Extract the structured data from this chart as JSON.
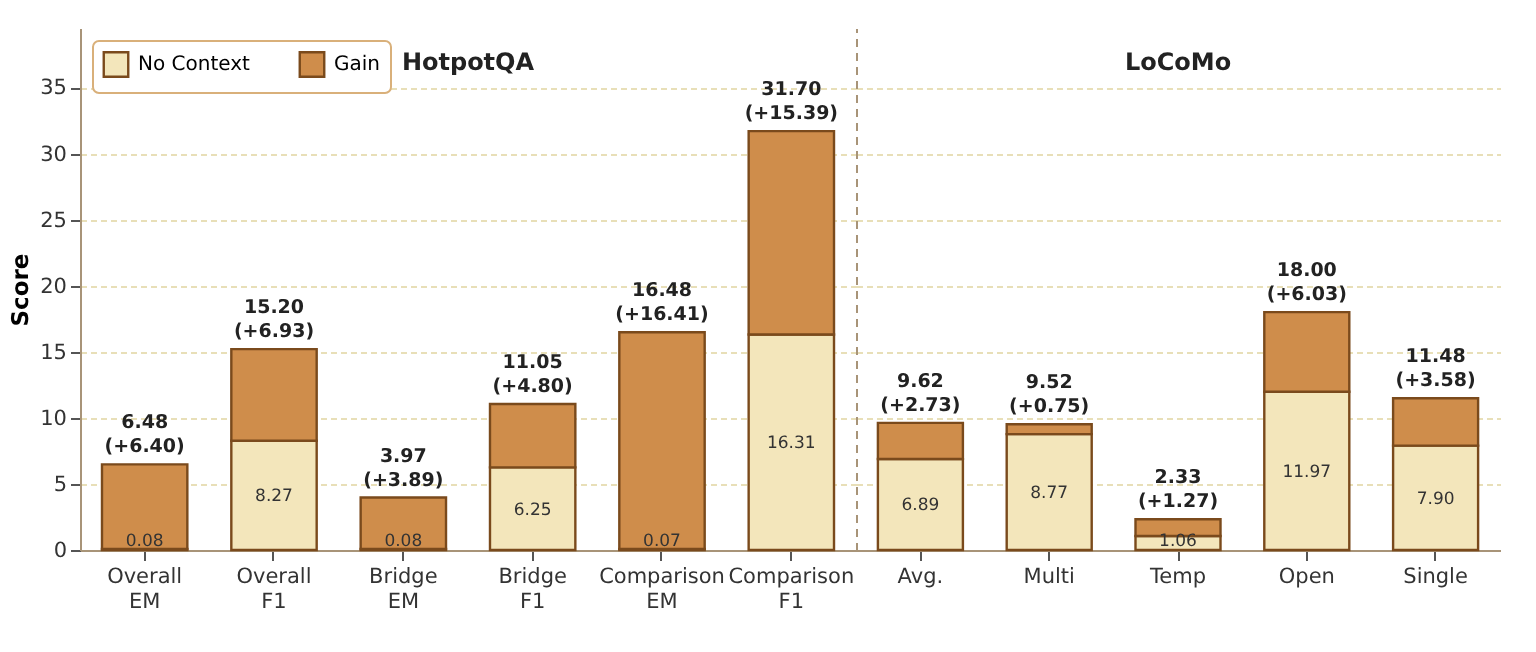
{
  "chart_data": [
    {
      "type": "bar",
      "stacked": true,
      "title": "HotpotQA",
      "ylabel": "Score",
      "categories": [
        "Overall EM",
        "Overall F1",
        "Bridge EM",
        "Bridge F1",
        "Comparison EM",
        "Comparison F1"
      ],
      "series": [
        {
          "name": "No Context",
          "color": "#f3e6bb",
          "values": [
            0.08,
            8.27,
            0.08,
            6.25,
            0.07,
            16.31
          ],
          "value_labels": [
            "0.08",
            "8.27",
            "0.08",
            "6.25",
            "0.07",
            "16.31"
          ]
        },
        {
          "name": "Gain",
          "color": "#cf8d4b",
          "values": [
            6.4,
            6.93,
            3.89,
            4.8,
            16.41,
            15.39
          ]
        }
      ],
      "totals": [
        "6.48\n(+6.40)",
        "15.20\n(+6.93)",
        "3.97\n(+3.89)",
        "11.05\n(+4.80)",
        "16.48\n(+16.41)",
        "31.70\n(+15.39)"
      ],
      "ylim": [
        0,
        39.5
      ],
      "yticks": [
        0,
        5,
        10,
        15,
        20,
        25,
        30,
        35
      ],
      "grid": "y",
      "legend": "top left"
    },
    {
      "type": "bar",
      "stacked": true,
      "title": "LoCoMo",
      "categories": [
        "Avg.",
        "Multi",
        "Temp",
        "Open",
        "Single"
      ],
      "series": [
        {
          "name": "No Context",
          "color": "#f3e6bb",
          "values": [
            6.89,
            8.77,
            1.06,
            11.97,
            7.9
          ],
          "value_labels": [
            "6.89",
            "8.77",
            "1.06",
            "11.97",
            "7.90"
          ]
        },
        {
          "name": "Gain",
          "color": "#cf8d4b",
          "values": [
            2.73,
            0.75,
            1.27,
            6.03,
            3.58
          ]
        }
      ],
      "totals": [
        "9.62\n(+2.73)",
        "9.52\n(+0.75)",
        "2.33\n(+1.27)",
        "18.00\n(+6.03)",
        "11.48\n(+3.58)"
      ],
      "ylim": [
        0,
        39.5
      ],
      "yticks": [
        0,
        5,
        10,
        15,
        20,
        25,
        30,
        35
      ],
      "grid": "y",
      "tick_labels": "x"
    }
  ]
}
